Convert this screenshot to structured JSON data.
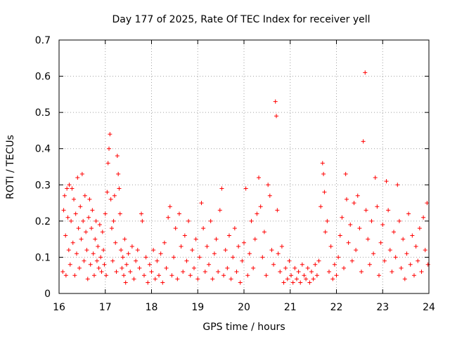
{
  "chart_data": {
    "type": "scatter",
    "title": "Day 177 of 2025, Rate Of TEC Index for receiver yell",
    "xlabel": "GPS time / hours",
    "ylabel": "ROTI / TECUs",
    "xlim": [
      16,
      24
    ],
    "ylim": [
      0,
      0.7
    ],
    "xticks": [
      "16",
      "17",
      "18",
      "19",
      "20",
      "21",
      "22",
      "23",
      "24"
    ],
    "yticks": [
      "0",
      "0.1",
      "0.2",
      "0.3",
      "0.4",
      "0.5",
      "0.6",
      "0.7"
    ],
    "grid": true,
    "marker": "+",
    "series": [
      {
        "color": "#ff0000",
        "points": [
          [
            16.08,
            0.06
          ],
          [
            16.1,
            0.23
          ],
          [
            16.12,
            0.27
          ],
          [
            16.14,
            0.16
          ],
          [
            16.15,
            0.05
          ],
          [
            16.17,
            0.29
          ],
          [
            16.19,
            0.21
          ],
          [
            16.21,
            0.12
          ],
          [
            16.22,
            0.3
          ],
          [
            16.24,
            0.08
          ],
          [
            16.26,
            0.2
          ],
          [
            16.28,
            0.29
          ],
          [
            16.3,
            0.14
          ],
          [
            16.32,
            0.26
          ],
          [
            16.34,
            0.05
          ],
          [
            16.36,
            0.22
          ],
          [
            16.38,
            0.11
          ],
          [
            16.4,
            0.32
          ],
          [
            16.42,
            0.18
          ],
          [
            16.44,
            0.07
          ],
          [
            16.46,
            0.24
          ],
          [
            16.48,
            0.15
          ],
          [
            16.5,
            0.33
          ],
          [
            16.52,
            0.2
          ],
          [
            16.54,
            0.09
          ],
          [
            16.56,
            0.27
          ],
          [
            16.58,
            0.17
          ],
          [
            16.6,
            0.12
          ],
          [
            16.62,
            0.04
          ],
          [
            16.64,
            0.21
          ],
          [
            16.66,
            0.26
          ],
          [
            16.68,
            0.08
          ],
          [
            16.7,
            0.18
          ],
          [
            16.72,
            0.23
          ],
          [
            16.74,
            0.11
          ],
          [
            16.76,
            0.05
          ],
          [
            16.78,
            0.15
          ],
          [
            16.8,
            0.2
          ],
          [
            16.82,
            0.09
          ],
          [
            16.84,
            0.13
          ],
          [
            16.86,
            0.07
          ],
          [
            16.88,
            0.19
          ],
          [
            16.9,
            0.1
          ],
          [
            16.92,
            0.06
          ],
          [
            16.94,
            0.17
          ],
          [
            16.96,
            0.12
          ],
          [
            16.98,
            0.08
          ],
          [
            17.0,
            0.22
          ],
          [
            17.02,
            0.05
          ],
          [
            17.04,
            0.28
          ],
          [
            17.06,
            0.36
          ],
          [
            17.08,
            0.4
          ],
          [
            17.1,
            0.44
          ],
          [
            17.12,
            0.26
          ],
          [
            17.14,
            0.18
          ],
          [
            17.16,
            0.09
          ],
          [
            17.18,
            0.2
          ],
          [
            17.2,
            0.27
          ],
          [
            17.22,
            0.14
          ],
          [
            17.24,
            0.06
          ],
          [
            17.26,
            0.38
          ],
          [
            17.28,
            0.33
          ],
          [
            17.3,
            0.29
          ],
          [
            17.32,
            0.22
          ],
          [
            17.34,
            0.12
          ],
          [
            17.36,
            0.07
          ],
          [
            17.38,
            0.1
          ],
          [
            17.4,
            0.05
          ],
          [
            17.42,
            0.15
          ],
          [
            17.44,
            0.03
          ],
          [
            17.46,
            0.08
          ],
          [
            17.5,
            0.11
          ],
          [
            17.54,
            0.06
          ],
          [
            17.58,
            0.13
          ],
          [
            17.62,
            0.04
          ],
          [
            17.66,
            0.09
          ],
          [
            17.7,
            0.12
          ],
          [
            17.74,
            0.07
          ],
          [
            17.78,
            0.22
          ],
          [
            17.8,
            0.2
          ],
          [
            17.84,
            0.05
          ],
          [
            17.88,
            0.1
          ],
          [
            17.92,
            0.03
          ],
          [
            17.96,
            0.08
          ],
          [
            18.0,
            0.06
          ],
          [
            18.04,
            0.12
          ],
          [
            18.08,
            0.04
          ],
          [
            18.12,
            0.09
          ],
          [
            18.16,
            0.05
          ],
          [
            18.2,
            0.11
          ],
          [
            18.24,
            0.03
          ],
          [
            18.28,
            0.14
          ],
          [
            18.32,
            0.07
          ],
          [
            18.36,
            0.21
          ],
          [
            18.4,
            0.24
          ],
          [
            18.44,
            0.05
          ],
          [
            18.48,
            0.1
          ],
          [
            18.52,
            0.18
          ],
          [
            18.56,
            0.04
          ],
          [
            18.6,
            0.22
          ],
          [
            18.64,
            0.13
          ],
          [
            18.68,
            0.06
          ],
          [
            18.72,
            0.16
          ],
          [
            18.76,
            0.09
          ],
          [
            18.8,
            0.2
          ],
          [
            18.84,
            0.05
          ],
          [
            18.88,
            0.12
          ],
          [
            18.92,
            0.07
          ],
          [
            18.96,
            0.15
          ],
          [
            19.0,
            0.04
          ],
          [
            19.04,
            0.1
          ],
          [
            19.08,
            0.25
          ],
          [
            19.12,
            0.18
          ],
          [
            19.16,
            0.06
          ],
          [
            19.2,
            0.13
          ],
          [
            19.24,
            0.08
          ],
          [
            19.28,
            0.2
          ],
          [
            19.32,
            0.04
          ],
          [
            19.36,
            0.11
          ],
          [
            19.4,
            0.15
          ],
          [
            19.44,
            0.06
          ],
          [
            19.48,
            0.23
          ],
          [
            19.52,
            0.29
          ],
          [
            19.56,
            0.05
          ],
          [
            19.6,
            0.12
          ],
          [
            19.64,
            0.07
          ],
          [
            19.68,
            0.16
          ],
          [
            19.72,
            0.04
          ],
          [
            19.76,
            0.1
          ],
          [
            19.8,
            0.18
          ],
          [
            19.84,
            0.06
          ],
          [
            19.88,
            0.13
          ],
          [
            19.92,
            0.03
          ],
          [
            19.96,
            0.09
          ],
          [
            20.0,
            0.14
          ],
          [
            20.04,
            0.29
          ],
          [
            20.08,
            0.05
          ],
          [
            20.12,
            0.11
          ],
          [
            20.16,
            0.2
          ],
          [
            20.2,
            0.07
          ],
          [
            20.24,
            0.15
          ],
          [
            20.28,
            0.22
          ],
          [
            20.32,
            0.32
          ],
          [
            20.36,
            0.24
          ],
          [
            20.4,
            0.1
          ],
          [
            20.44,
            0.17
          ],
          [
            20.48,
            0.05
          ],
          [
            20.52,
            0.3
          ],
          [
            20.56,
            0.27
          ],
          [
            20.6,
            0.12
          ],
          [
            20.64,
            0.08
          ],
          [
            20.68,
            0.53
          ],
          [
            20.7,
            0.49
          ],
          [
            20.72,
            0.23
          ],
          [
            20.74,
            0.11
          ],
          [
            20.78,
            0.06
          ],
          [
            20.82,
            0.13
          ],
          [
            20.86,
            0.03
          ],
          [
            20.9,
            0.07
          ],
          [
            20.94,
            0.04
          ],
          [
            20.98,
            0.09
          ],
          [
            21.02,
            0.05
          ],
          [
            21.06,
            0.03
          ],
          [
            21.1,
            0.07
          ],
          [
            21.14,
            0.04
          ],
          [
            21.18,
            0.06
          ],
          [
            21.22,
            0.03
          ],
          [
            21.26,
            0.08
          ],
          [
            21.3,
            0.05
          ],
          [
            21.34,
            0.04
          ],
          [
            21.38,
            0.07
          ],
          [
            21.42,
            0.03
          ],
          [
            21.46,
            0.06
          ],
          [
            21.5,
            0.04
          ],
          [
            21.54,
            0.08
          ],
          [
            21.58,
            0.05
          ],
          [
            21.62,
            0.09
          ],
          [
            21.66,
            0.24
          ],
          [
            21.7,
            0.36
          ],
          [
            21.72,
            0.33
          ],
          [
            21.74,
            0.28
          ],
          [
            21.76,
            0.17
          ],
          [
            21.8,
            0.2
          ],
          [
            21.84,
            0.06
          ],
          [
            21.88,
            0.13
          ],
          [
            21.92,
            0.04
          ],
          [
            21.96,
            0.08
          ],
          [
            22.0,
            0.05
          ],
          [
            22.04,
            0.1
          ],
          [
            22.08,
            0.16
          ],
          [
            22.12,
            0.21
          ],
          [
            22.16,
            0.07
          ],
          [
            22.2,
            0.33
          ],
          [
            22.22,
            0.26
          ],
          [
            22.26,
            0.14
          ],
          [
            22.3,
            0.19
          ],
          [
            22.34,
            0.09
          ],
          [
            22.38,
            0.25
          ],
          [
            22.42,
            0.12
          ],
          [
            22.46,
            0.27
          ],
          [
            22.5,
            0.18
          ],
          [
            22.54,
            0.06
          ],
          [
            22.58,
            0.42
          ],
          [
            22.62,
            0.61
          ],
          [
            22.64,
            0.23
          ],
          [
            22.68,
            0.15
          ],
          [
            22.72,
            0.08
          ],
          [
            22.76,
            0.2
          ],
          [
            22.8,
            0.11
          ],
          [
            22.84,
            0.32
          ],
          [
            22.88,
            0.24
          ],
          [
            22.92,
            0.05
          ],
          [
            22.96,
            0.14
          ],
          [
            23.0,
            0.19
          ],
          [
            23.04,
            0.09
          ],
          [
            23.08,
            0.31
          ],
          [
            23.12,
            0.23
          ],
          [
            23.16,
            0.12
          ],
          [
            23.2,
            0.06
          ],
          [
            23.24,
            0.17
          ],
          [
            23.28,
            0.1
          ],
          [
            23.32,
            0.3
          ],
          [
            23.36,
            0.2
          ],
          [
            23.4,
            0.07
          ],
          [
            23.44,
            0.15
          ],
          [
            23.48,
            0.04
          ],
          [
            23.52,
            0.11
          ],
          [
            23.56,
            0.22
          ],
          [
            23.6,
            0.08
          ],
          [
            23.64,
            0.16
          ],
          [
            23.68,
            0.05
          ],
          [
            23.72,
            0.13
          ],
          [
            23.76,
            0.09
          ],
          [
            23.8,
            0.18
          ],
          [
            23.84,
            0.06
          ],
          [
            23.88,
            0.21
          ],
          [
            23.92,
            0.12
          ],
          [
            23.96,
            0.25
          ],
          [
            23.98,
            0.08
          ]
        ]
      }
    ]
  }
}
